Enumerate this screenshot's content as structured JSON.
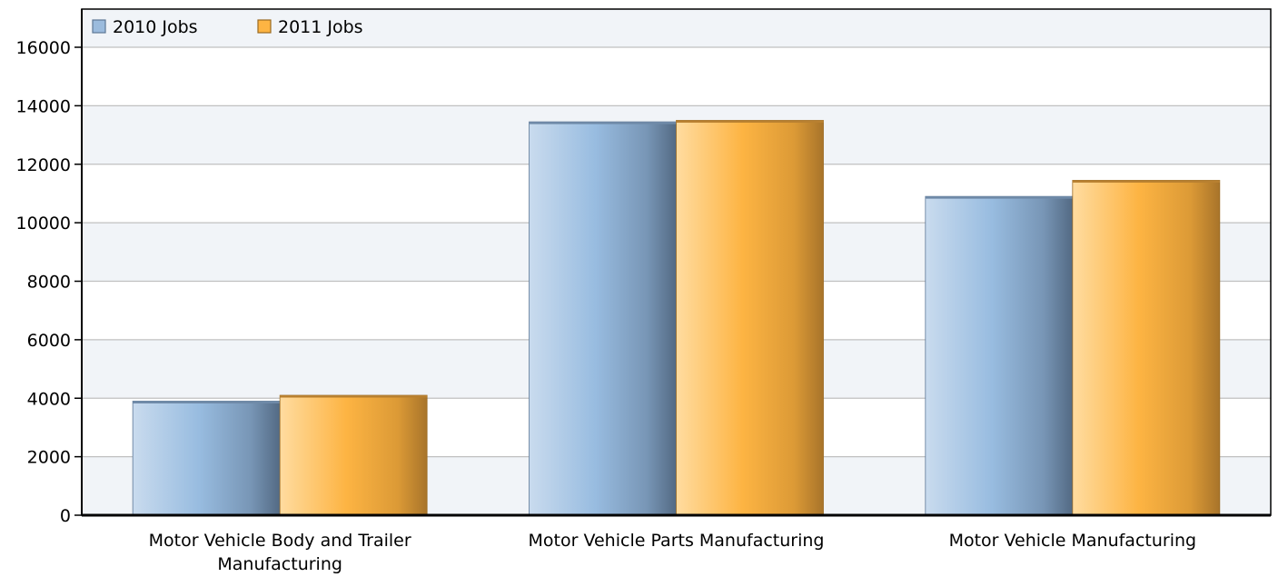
{
  "chart_data": {
    "type": "bar",
    "categories": [
      [
        "Motor Vehicle Body and Trailer",
        "Manufacturing"
      ],
      [
        "Motor Vehicle Parts Manufacturing"
      ],
      [
        "Motor Vehicle Manufacturing"
      ]
    ],
    "series": [
      {
        "name": "2010 Jobs",
        "values": [
          3900,
          13450,
          10900
        ]
      },
      {
        "name": "2011 Jobs",
        "values": [
          4100,
          13500,
          11450
        ]
      }
    ],
    "yticks": [
      "0",
      "2000",
      "4000",
      "6000",
      "8000",
      "10000",
      "12000",
      "14000",
      "16000"
    ],
    "ylim": [
      0,
      16000
    ],
    "grid": true,
    "legend_position": "top-left",
    "colors": {
      "series_2010": "#9bbbdd",
      "series_2011": "#fdb443",
      "band": "#f1f4f8",
      "grid": "#c0c0c0",
      "axis": "#000000"
    }
  }
}
